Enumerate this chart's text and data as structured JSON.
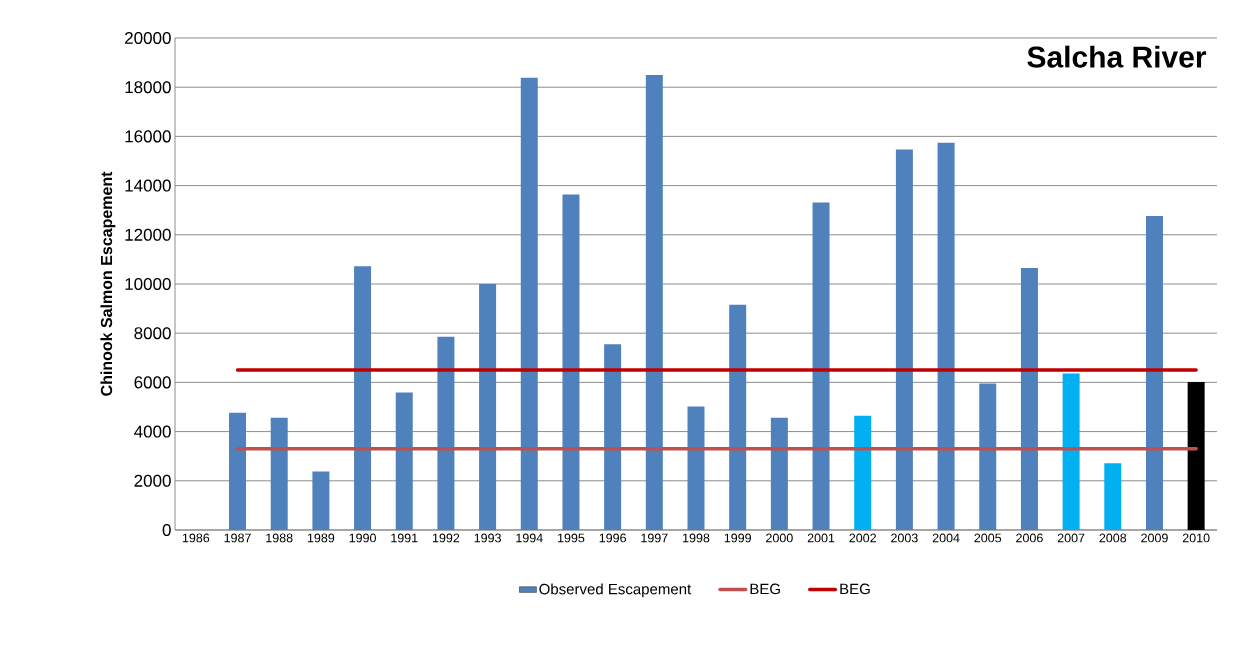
{
  "chart_data": {
    "type": "bar",
    "title": "Salcha River",
    "ylabel": "Chinook Salmon Escapement",
    "categories": [
      "1986",
      "1987",
      "1988",
      "1989",
      "1990",
      "1991",
      "1992",
      "1993",
      "1994",
      "1995",
      "1996",
      "1997",
      "1998",
      "1999",
      "2000",
      "2001",
      "2002",
      "2003",
      "2004",
      "2005",
      "2006",
      "2007",
      "2008",
      "2009",
      "2010"
    ],
    "series": [
      {
        "name": "Observed Escapement",
        "color": "#4f81bd",
        "colors": [
          "#4f81bd",
          "#4f81bd",
          "#4f81bd",
          "#4f81bd",
          "#4f81bd",
          "#4f81bd",
          "#4f81bd",
          "#4f81bd",
          "#4f81bd",
          "#4f81bd",
          "#4f81bd",
          "#4f81bd",
          "#4f81bd",
          "#4f81bd",
          "#4f81bd",
          "#4f81bd",
          "#00b0f0",
          "#4f81bd",
          "#4f81bd",
          "#4f81bd",
          "#4f81bd",
          "#00b0f0",
          "#00b0f0",
          "#4f81bd",
          "#000000"
        ],
        "values": [
          null,
          4770,
          4560,
          2380,
          10720,
          5590,
          7860,
          10000,
          18380,
          13640,
          7550,
          18500,
          5020,
          9160,
          4560,
          13310,
          4640,
          15470,
          15740,
          5950,
          10650,
          6360,
          2710,
          12760,
          6020
        ]
      },
      {
        "name": "BEG",
        "type": "line",
        "color": "#c0504d",
        "values": [
          null,
          3300,
          3300,
          3300,
          3300,
          3300,
          3300,
          3300,
          3300,
          3300,
          3300,
          3300,
          3300,
          3300,
          3300,
          3300,
          3300,
          3300,
          3300,
          3300,
          3300,
          3300,
          3300,
          3300,
          3300
        ]
      },
      {
        "name": "BEG",
        "type": "line",
        "color": "#c00000",
        "values": [
          null,
          6500,
          6500,
          6500,
          6500,
          6500,
          6500,
          6500,
          6500,
          6500,
          6500,
          6500,
          6500,
          6500,
          6500,
          6500,
          6500,
          6500,
          6500,
          6500,
          6500,
          6500,
          6500,
          6500,
          6500
        ]
      }
    ],
    "ylim": [
      0,
      20000
    ],
    "yticks": [
      0,
      2000,
      4000,
      6000,
      8000,
      10000,
      12000,
      14000,
      16000,
      18000,
      20000
    ],
    "grid": "y",
    "legend": "bottom",
    "marker": "none"
  }
}
